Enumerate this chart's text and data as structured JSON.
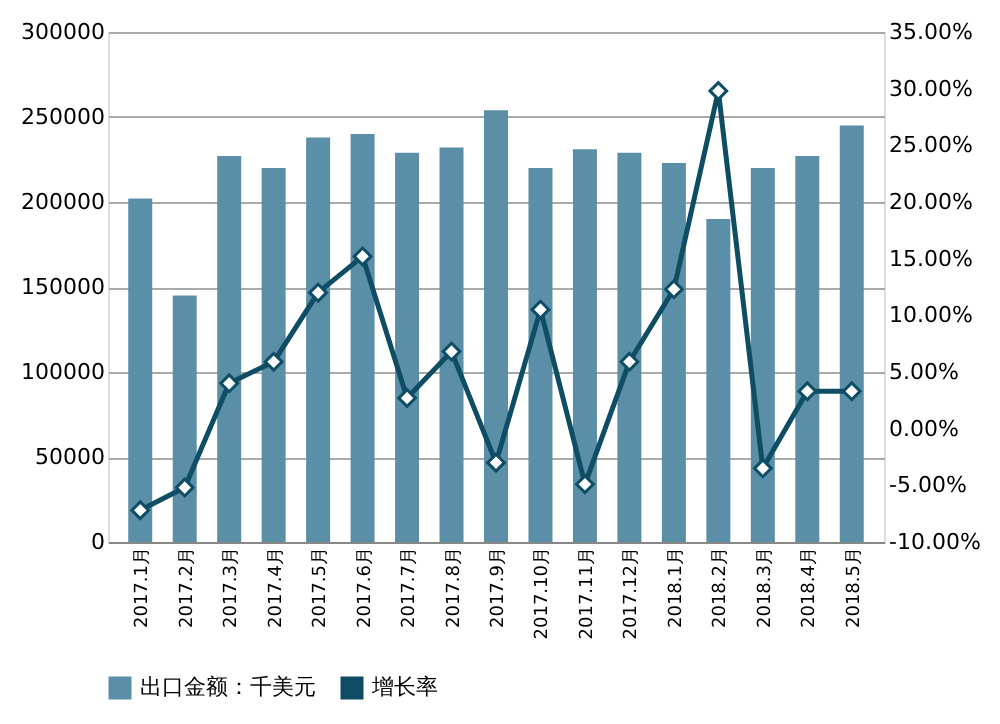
{
  "chart_data": {
    "type": "bar",
    "categories": [
      "2017.1月",
      "2017.2月",
      "2017.3月",
      "2017.4月",
      "2017.5月",
      "2017.6月",
      "2017.7月",
      "2017.8月",
      "2017.9月",
      "2017.10月",
      "2017.11月",
      "2017.12月",
      "2018.1月",
      "2018.2月",
      "2018.3月",
      "2018.4月",
      "2018.5月"
    ],
    "series": [
      {
        "name": "出口金额：千美元",
        "color": "#5b8fa8",
        "values": [
          202000,
          145000,
          227000,
          220000,
          238000,
          240000,
          229000,
          232000,
          254000,
          220000,
          231000,
          229000,
          223000,
          190000,
          220000,
          227000,
          245000
        ]
      },
      {
        "name": "增长率",
        "type": "line",
        "axis": "y2",
        "color": "#0e4d64",
        "marker": "diamond",
        "values": [
          -7.2,
          -5.2,
          4.0,
          5.9,
          12.0,
          15.2,
          2.7,
          6.8,
          -3.0,
          10.5,
          -4.9,
          5.9,
          12.3,
          29.8,
          -3.5,
          3.3,
          3.3
        ]
      }
    ],
    "ylim": [
      0,
      300000
    ],
    "yticks": [
      0,
      50000,
      100000,
      150000,
      200000,
      250000,
      300000
    ],
    "y2lim": [
      -10,
      35
    ],
    "y2ticks": [
      {
        "value": -10,
        "label": "-10.00%"
      },
      {
        "value": -5,
        "label": "-5.00%"
      },
      {
        "value": 0,
        "label": "0.00%"
      },
      {
        "value": 5,
        "label": "5.00%"
      },
      {
        "value": 10,
        "label": "10.00%"
      },
      {
        "value": 15,
        "label": "15.00%"
      },
      {
        "value": 20,
        "label": "20.00%"
      },
      {
        "value": 25,
        "label": "25.00%"
      },
      {
        "value": 30,
        "label": "30.00%"
      },
      {
        "value": 35,
        "label": "35.00%"
      }
    ],
    "grid": "y",
    "legend": "bottom"
  }
}
